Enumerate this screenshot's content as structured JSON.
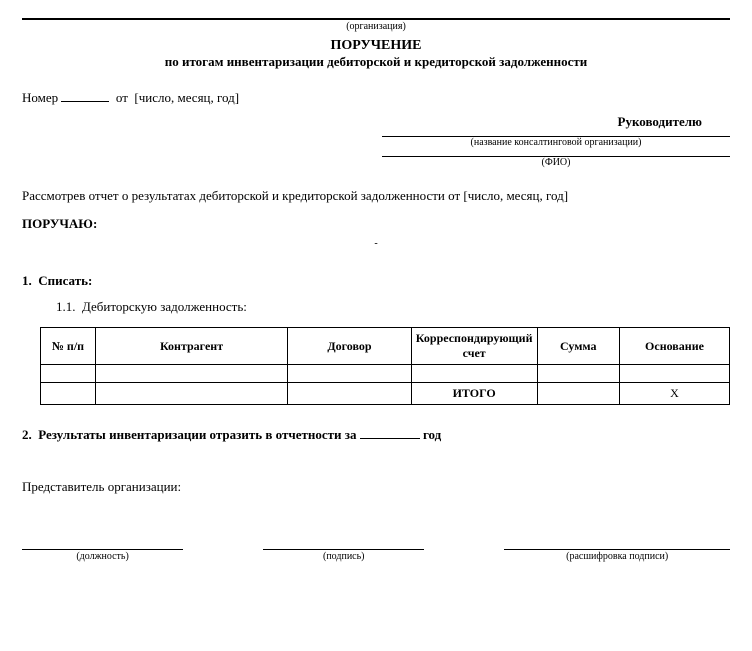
{
  "org_caption": "(организация)",
  "title": "ПОРУЧЕНИЕ",
  "subtitle": "по итогам инвентаризации дебиторской и кредиторской задолженности",
  "number_label": "Номер",
  "from_label": "от",
  "date_placeholder": "[число, месяц, год]",
  "to_label": "Руководителю",
  "consult_caption": "(название консалтинговой организации)",
  "fio_caption": "(ФИО)",
  "review_text_prefix": "Рассмотрев отчет о результатах дебиторской и кредиторской задолженности от ",
  "order_word": "ПОРУЧАЮ:",
  "dash": "-",
  "sec1_num": "1.",
  "sec1_label": "Списать:",
  "sec11_num": "1.1.",
  "sec11_label": "Дебиторскую задолженность:",
  "table": {
    "columns": [
      "№ п/п",
      "Контрагент",
      "Договор",
      "Корреспондирующий счет",
      "Сумма",
      "Основание"
    ],
    "col_widths_pct": [
      8,
      28,
      18,
      18,
      12,
      16
    ],
    "rows_blank": 1,
    "total_label": "ИТОГО",
    "total_x": "Х"
  },
  "sec2_num": "2.",
  "sec2_prefix": "Результаты инвентаризации отразить в отчетности за ",
  "sec2_suffix": " год",
  "rep_label": "Представитель организации:",
  "sign": {
    "position": "(должность)",
    "signature": "(подпись)",
    "decrypt": "(расшифровка подписи)"
  }
}
